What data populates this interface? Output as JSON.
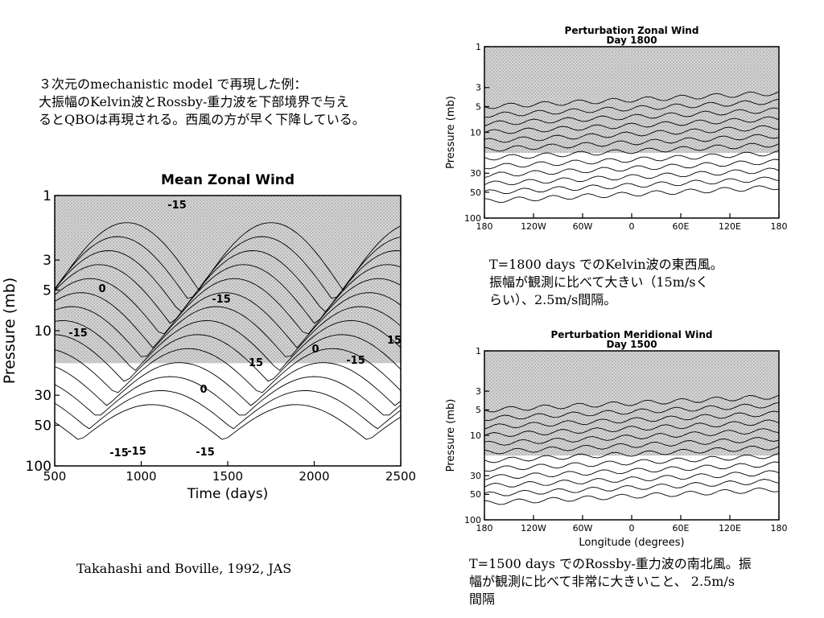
{
  "intro_text": "３次元のmechanistic model で再現した例：\n大振幅のKelvin波とRossby-重力波を下部境界で与え\nるとQBOは再現される。西風の方が早く下降している。",
  "citation": "Takahashi and Boville, 1992, JAS",
  "zonal_caption": "T=1800 days でのKelvin波の東西風。\n振幅が観測に比べて大きい（15m/sく\nらい）、2.5m/s間隔。",
  "meridional_caption": "T=1500 days でのRossby-重力波の南北風。振\n幅が観測に比べて非常に大きいこと、 2.5m/s\n間隔",
  "chart_data": [
    {
      "type": "contour",
      "title": "Mean Zonal Wind",
      "xlabel": "Time (days)",
      "ylabel": "Pressure (mb)",
      "x_ticks": [
        "500",
        "1000",
        "1500",
        "2000",
        "2500"
      ],
      "y_ticks": [
        "1",
        "3",
        "5",
        "10",
        "30",
        "50",
        "100"
      ],
      "xlim": [
        500,
        2500
      ],
      "ylim": [
        100,
        1
      ],
      "y_scale": "log",
      "contour_labels": [
        "-15",
        "0",
        "-15",
        "-15",
        "15",
        "0",
        "-15",
        "0",
        "-15",
        "15",
        "-15",
        "-15"
      ],
      "shading": "stippled"
    },
    {
      "type": "contour",
      "title": "Perturbation Zonal Wind",
      "subtitle": "Day 1800",
      "xlabel": "",
      "ylabel": "Pressure (mb)",
      "x_ticks": [
        "180",
        "120W",
        "60W",
        "0",
        "60E",
        "120E",
        "180"
      ],
      "y_ticks": [
        "1",
        "3",
        "5",
        "10",
        "30",
        "50",
        "100"
      ],
      "ylim": [
        100,
        1
      ],
      "y_scale": "log",
      "shading": "stippled"
    },
    {
      "type": "contour",
      "title": "Perturbation Meridional Wind",
      "subtitle": "Day 1500",
      "xlabel": "Longitude (degrees)",
      "ylabel": "Pressure (mb)",
      "x_ticks": [
        "180",
        "120W",
        "60W",
        "0",
        "60E",
        "120E",
        "180"
      ],
      "y_ticks": [
        "1",
        "3",
        "5",
        "10",
        "30",
        "50",
        "100"
      ],
      "ylim": [
        100,
        1
      ],
      "y_scale": "log",
      "shading": "stippled"
    }
  ]
}
